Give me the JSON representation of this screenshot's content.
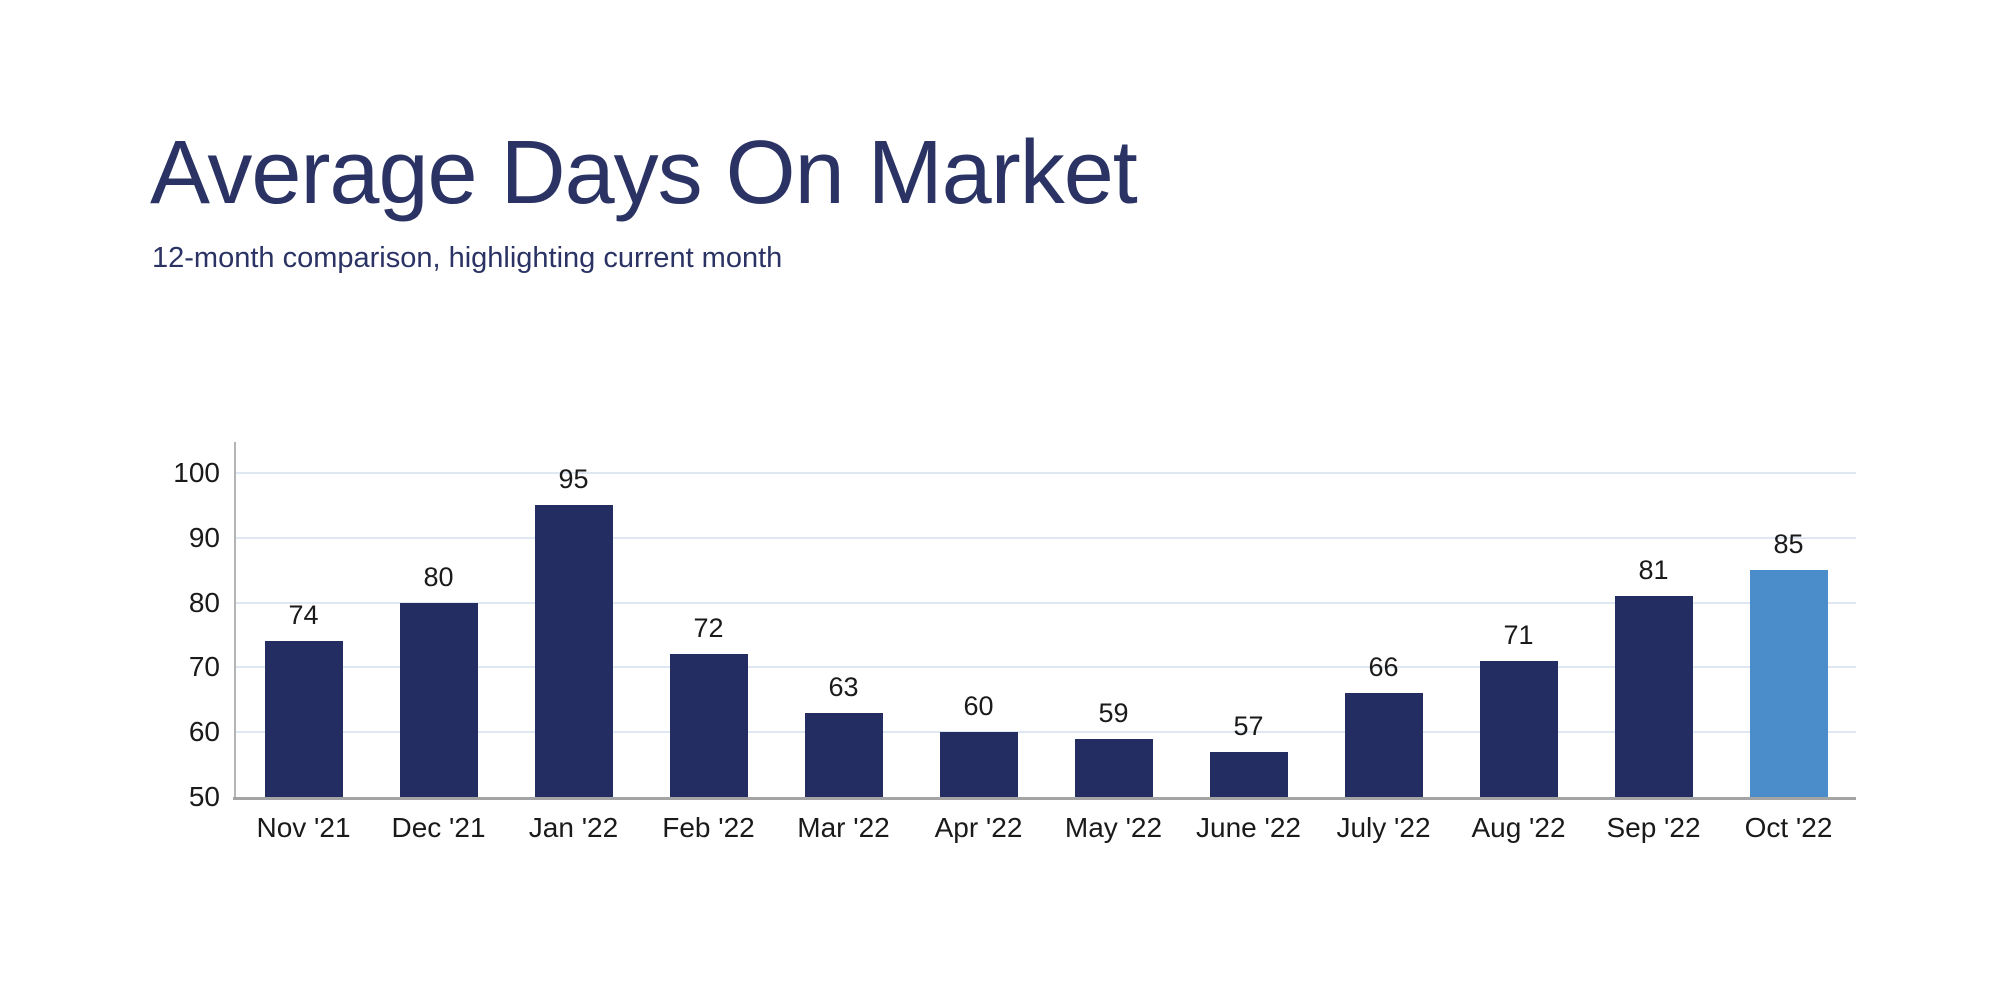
{
  "chart_data": {
    "type": "bar",
    "title": "Average Days On Market",
    "subtitle": "12-month comparison, highlighting current month",
    "categories": [
      "Nov '21",
      "Dec '21",
      "Jan '22",
      "Feb '22",
      "Mar '22",
      "Apr '22",
      "May '22",
      "June '22",
      "July '22",
      "Aug '22",
      "Sep '22",
      "Oct '22"
    ],
    "values": [
      74,
      80,
      95,
      72,
      63,
      60,
      59,
      57,
      66,
      71,
      81,
      85
    ],
    "data_labels": [
      74,
      80,
      95,
      72,
      63,
      60,
      59,
      57,
      66,
      71,
      81,
      85
    ],
    "highlight_index": 11,
    "highlight_label": "Oct '22",
    "xlabel": "",
    "ylabel": "",
    "ylim": [
      50,
      100
    ],
    "yticks": [
      50,
      60,
      70,
      80,
      90,
      100
    ],
    "grid": true,
    "legend": false,
    "colors": {
      "bar": "#242d61",
      "highlight_bar": "#4b8dca",
      "title_text": "#2a3364",
      "axis_label_text": "#1a1a1a",
      "gridline": "#dee7f2",
      "x_axis_line": "#a4a4a4",
      "y_axis_line": "#b4b4b4",
      "background": "#ffffff"
    }
  }
}
